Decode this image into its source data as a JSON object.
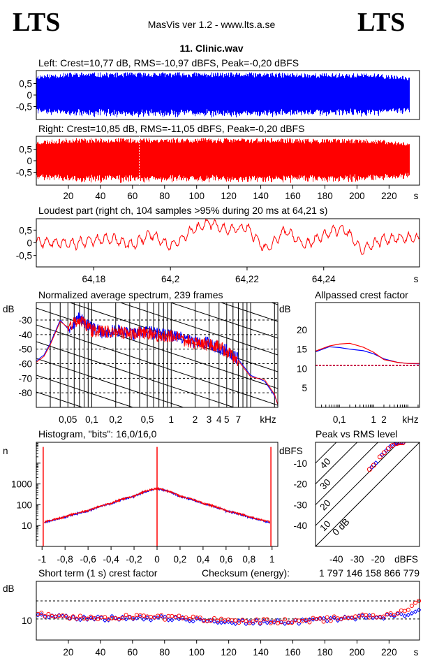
{
  "header": {
    "logo_left": "LTS",
    "logo_right": "LTS",
    "app_title": "MasVis ver 1.2 - www.lts.a.se",
    "file_title": "11. Clinic.wav"
  },
  "colors": {
    "left": "#0000ff",
    "right": "#ff0000",
    "background": "#ffffff"
  },
  "chart_data": [
    {
      "id": "left",
      "type": "area",
      "title": "Left: Crest=10,77 dB, RMS=-10,97 dBFS, Peak=-0,20 dBFS",
      "xlabel": "",
      "ylabel": "",
      "xlim": [
        0,
        239
      ],
      "ylim": [
        -1,
        1
      ],
      "y_ticks": [
        "0,5",
        "0",
        "-0,5"
      ],
      "series": [
        {
          "envelope": [
            0.88,
            0.99,
            0.98,
            0.99,
            0.99,
            0.98,
            0.98,
            0.96,
            0.95,
            0.94,
            0.8
          ]
        }
      ]
    },
    {
      "id": "right",
      "type": "area",
      "title": "Right: Crest=10,85 dB, RMS=-11,05 dBFS, Peak=-0,20 dBFS",
      "xlabel": "s",
      "ylabel": "",
      "xlim": [
        0,
        239
      ],
      "ylim": [
        -1,
        1
      ],
      "y_ticks": [
        "0,5",
        "0",
        "-0,5"
      ],
      "x_ticks": [
        "20",
        "40",
        "60",
        "80",
        "100",
        "120",
        "140",
        "160",
        "180",
        "200",
        "220"
      ],
      "marker_x": 64.21,
      "series": [
        {
          "envelope": [
            0.88,
            0.99,
            0.98,
            0.99,
            0.99,
            0.98,
            0.98,
            0.96,
            0.95,
            0.94,
            0.8
          ]
        }
      ]
    },
    {
      "id": "loudest",
      "type": "line",
      "title": "Loudest part (right ch, 104 samples >95% during 20 ms at 64,21 s)",
      "xlabel": "s",
      "xlim": [
        64.165,
        64.265
      ],
      "ylim": [
        -0.95,
        0.95
      ],
      "y_ticks": [
        "0,5",
        "0",
        "-0,5"
      ],
      "x_ticks": [
        "64,18",
        "64,2",
        "64,22",
        "64,24"
      ],
      "series": [
        {
          "x": [
            64.165,
            64.17,
            64.175,
            64.18,
            64.185,
            64.19,
            64.195,
            64.2,
            64.205,
            64.21,
            64.215,
            64.22,
            64.225,
            64.23,
            64.235,
            64.24,
            64.245,
            64.25,
            64.255,
            64.26,
            64.265
          ],
          "y": [
            0.05,
            0.0,
            -0.05,
            0.1,
            0.15,
            -0.1,
            0.35,
            -0.15,
            0.4,
            0.8,
            0.5,
            0.6,
            -0.3,
            0.5,
            -0.1,
            0.3,
            0.6,
            -0.3,
            0.1,
            0.2,
            0.15
          ]
        }
      ]
    },
    {
      "id": "spectrum",
      "type": "line",
      "title": "Normalized average spectrum, 239 frames",
      "xlabel": "kHz",
      "ylabel": "dB",
      "x_scale": "log",
      "xlim": [
        0.02,
        22
      ],
      "ylim": [
        -90,
        -18
      ],
      "y_ticks": [
        "-30",
        "-40",
        "-50",
        "-60",
        "-70",
        "-80"
      ],
      "x_ticks": [
        "0,05",
        "0,1",
        "0,2",
        "0,5",
        "1",
        "2",
        "3",
        "4",
        "5",
        "7"
      ],
      "series": [
        {
          "name": "",
          "color": "#0000ff",
          "x": [
            0.02,
            0.025,
            0.03,
            0.04,
            0.05,
            0.07,
            0.1,
            0.15,
            0.2,
            0.3,
            0.5,
            0.7,
            1,
            1.5,
            2,
            3,
            4,
            5,
            7,
            10,
            15,
            20,
            22
          ],
          "y": [
            -58,
            -54,
            -46,
            -30,
            -36,
            -28,
            -36,
            -39,
            -37,
            -40,
            -38,
            -40,
            -40,
            -43,
            -45,
            -46,
            -49,
            -51,
            -57,
            -68,
            -72,
            -82,
            -88
          ]
        },
        {
          "name": "",
          "color": "#ff0000",
          "x": [
            0.02,
            0.025,
            0.03,
            0.04,
            0.05,
            0.07,
            0.1,
            0.15,
            0.2,
            0.3,
            0.5,
            0.7,
            1,
            1.5,
            2,
            3,
            4,
            5,
            7,
            10,
            15,
            20,
            22
          ],
          "y": [
            -59,
            -55,
            -47,
            -31,
            -35,
            -29,
            -37,
            -38,
            -38,
            -39,
            -39,
            -41,
            -41,
            -44,
            -46,
            -47,
            -48,
            -52,
            -58,
            -69,
            -71,
            -81,
            -88
          ]
        }
      ]
    },
    {
      "id": "allpass",
      "type": "line",
      "title": "Allpassed crest factor",
      "xlabel": "kHz",
      "ylabel": "dB",
      "x_scale": "log",
      "xlim": [
        0.02,
        22
      ],
      "ylim": [
        0,
        27
      ],
      "y_ticks": [
        "20",
        "15",
        "10",
        "5"
      ],
      "x_ticks": [
        "0,1",
        "1",
        "2"
      ],
      "series": [
        {
          "name": "",
          "color": "#0000ff",
          "x": [
            0.02,
            0.05,
            0.1,
            0.2,
            0.5,
            1,
            2,
            5,
            10,
            22
          ],
          "y": [
            14.3,
            15.6,
            15.4,
            15.0,
            14.6,
            13.8,
            12.5,
            11.6,
            11.3,
            11.2
          ]
        },
        {
          "name": "",
          "color": "#ff0000",
          "x": [
            0.02,
            0.05,
            0.1,
            0.2,
            0.5,
            1,
            2,
            5,
            10,
            22
          ],
          "y": [
            14.5,
            15.8,
            16.3,
            16.5,
            15.5,
            14.2,
            12.3,
            11.6,
            11.3,
            11.3
          ]
        }
      ],
      "reference_lines": [
        10.77,
        10.85
      ]
    },
    {
      "id": "histogram",
      "type": "line",
      "title": "Histogram, \"bits\": 16,0/16,0",
      "xlabel": "",
      "ylabel": "n",
      "y_scale": "log",
      "xlim": [
        -1.05,
        1.05
      ],
      "ylim": [
        1,
        100000
      ],
      "y_ticks": [
        "1000",
        "100",
        "10"
      ],
      "x_ticks": [
        "-1",
        "-0,8",
        "-0,6",
        "-0,4",
        "-0,2",
        "0",
        "0,2",
        "0,4",
        "0,6",
        "0,8",
        "1"
      ],
      "series": [
        {
          "name": "",
          "color": "#0000ff",
          "x": [
            -0.98,
            -0.9,
            -0.8,
            -0.6,
            -0.4,
            -0.2,
            0,
            0.2,
            0.4,
            0.6,
            0.8,
            0.9,
            0.98
          ],
          "y": [
            14,
            18,
            25,
            50,
            110,
            250,
            600,
            250,
            110,
            50,
            25,
            18,
            14
          ]
        },
        {
          "name": "",
          "color": "#ff0000",
          "x": [
            -0.98,
            -0.9,
            -0.8,
            -0.6,
            -0.4,
            -0.2,
            0,
            0.2,
            0.4,
            0.6,
            0.8,
            0.9,
            0.98
          ],
          "y": [
            15,
            19,
            26,
            52,
            115,
            260,
            620,
            260,
            115,
            52,
            26,
            19,
            15
          ]
        }
      ]
    },
    {
      "id": "peak_vs_rms",
      "type": "scatter",
      "title": "Peak vs RMS level",
      "xlabel": "dBFS",
      "ylabel": "dBFS",
      "xlim": [
        -50,
        0
      ],
      "ylim": [
        -50,
        0
      ],
      "y_ticks": [
        "-10",
        "-20",
        "-30",
        "-40"
      ],
      "x_ticks": [
        "-40",
        "-30",
        "-20"
      ],
      "diagonal_labels": [
        "40",
        "30",
        "20",
        "10",
        "0 dB"
      ],
      "series": [
        {
          "name": "",
          "color": "#0000ff",
          "x": [
            -23,
            -21,
            -18,
            -16,
            -14,
            -12,
            -11,
            -10,
            -9,
            -8
          ],
          "y": [
            -12,
            -10,
            -6,
            -4,
            -2,
            -1,
            -0.5,
            -0.3,
            -0.2,
            -0.2
          ]
        },
        {
          "name": "",
          "color": "#ff0000",
          "x": [
            -24,
            -22,
            -19,
            -17,
            -15,
            -13,
            -11,
            -10,
            -9,
            -8
          ],
          "y": [
            -13,
            -11,
            -7,
            -5,
            -3,
            -1.5,
            -0.6,
            -0.3,
            -0.2,
            -0.2
          ]
        }
      ]
    },
    {
      "id": "short_term_crest",
      "type": "scatter",
      "title": "Short term (1 s) crest factor",
      "checksum_label": "Checksum (energy):",
      "checksum_value": "1 797 146 158 866 779",
      "xlabel": "s",
      "ylabel": "dB",
      "xlim": [
        0,
        239
      ],
      "ylim": [
        0,
        30
      ],
      "y_ticks": [
        "10"
      ],
      "x_ticks": [
        "20",
        "40",
        "60",
        "80",
        "100",
        "120",
        "140",
        "160",
        "180",
        "200",
        "220"
      ],
      "series": [
        {
          "name": "",
          "color": "#0000ff",
          "x": [
            0,
            20,
            40,
            60,
            80,
            100,
            120,
            140,
            160,
            180,
            200,
            220,
            230,
            239
          ],
          "y": [
            13,
            11.5,
            11,
            11.5,
            11,
            10.5,
            9.5,
            9,
            9.2,
            10,
            11.5,
            12,
            13,
            15
          ]
        },
        {
          "name": "",
          "color": "#ff0000",
          "x": [
            0,
            20,
            40,
            60,
            80,
            100,
            120,
            140,
            160,
            180,
            200,
            220,
            230,
            239
          ],
          "y": [
            13.5,
            12,
            11.5,
            12,
            11.5,
            11,
            10,
            9.5,
            9.8,
            10.5,
            12,
            13,
            15,
            20
          ]
        }
      ]
    }
  ]
}
